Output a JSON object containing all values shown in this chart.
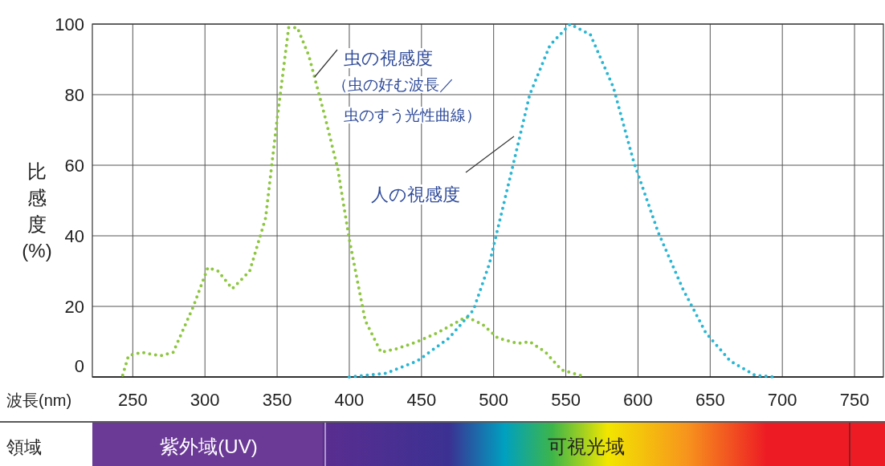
{
  "chart_data": {
    "type": "line",
    "xlabel": "波長(nm)",
    "ylabel": "比感度\n(%)",
    "xlim": [
      222,
      770
    ],
    "xticks": [
      250,
      300,
      350,
      400,
      450,
      500,
      550,
      600,
      650,
      700,
      750
    ],
    "ylim": [
      0,
      100
    ],
    "yticks": [
      0,
      20,
      40,
      60,
      80,
      100
    ],
    "grid": true,
    "line_style": "dotted",
    "series": [
      {
        "color": "#8dc63f",
        "x": [
          243,
          247,
          256,
          269,
          278,
          292,
          302,
          309,
          319,
          331,
          342,
          350,
          358,
          364,
          372,
          383,
          392,
          400,
          411,
          422,
          433,
          447,
          461,
          481,
          492,
          503,
          517,
          525,
          536,
          547,
          564
        ],
        "values": [
          0.5,
          6,
          7,
          6,
          7,
          20,
          31,
          30,
          25,
          30,
          45,
          73,
          99,
          99,
          91,
          74,
          59,
          39,
          16,
          7,
          8,
          10,
          12.5,
          17,
          15,
          11,
          9.5,
          10,
          7,
          2,
          0
        ]
      },
      {
        "color": "#29b6d3",
        "x": [
          400,
          425,
          447,
          469,
          486,
          497,
          514,
          525,
          539,
          553,
          567,
          583,
          597,
          614,
          631,
          647,
          664,
          681,
          694
        ],
        "values": [
          0,
          1,
          4.5,
          11,
          19,
          32,
          61,
          80,
          94,
          100,
          97,
          82,
          61,
          41,
          25,
          12.5,
          4.5,
          0.5,
          0
        ]
      }
    ],
    "annotations": [
      {
        "text": "虫の視感度",
        "x": 376,
        "y": 85
      },
      "（虫の好む波長／",
      "虫のすう光性曲線）",
      "人の視感度",
      "領域",
      "紫外域(UV)",
      "可視光域"
    ]
  }
}
